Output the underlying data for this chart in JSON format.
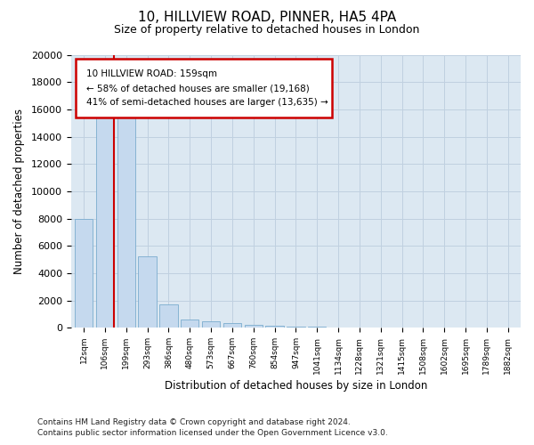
{
  "title_line1": "10, HILLVIEW ROAD, PINNER, HA5 4PA",
  "title_line2": "Size of property relative to detached houses in London",
  "xlabel": "Distribution of detached houses by size in London",
  "ylabel": "Number of detached properties",
  "categories": [
    "12sqm",
    "106sqm",
    "199sqm",
    "293sqm",
    "386sqm",
    "480sqm",
    "573sqm",
    "667sqm",
    "760sqm",
    "854sqm",
    "947sqm",
    "1041sqm",
    "1134sqm",
    "1228sqm",
    "1321sqm",
    "1415sqm",
    "1508sqm",
    "1602sqm",
    "1695sqm",
    "1789sqm",
    "1882sqm"
  ],
  "values": [
    8000,
    16700,
    16700,
    5200,
    1700,
    600,
    450,
    310,
    210,
    160,
    110,
    65,
    42,
    22,
    12,
    7,
    5,
    4,
    3,
    2,
    1
  ],
  "bar_color": "#c5d9ee",
  "bar_edge_color": "#7aacce",
  "vline_color": "#cc0000",
  "vline_x": 1.42,
  "ylim_max": 20000,
  "yticks": [
    0,
    2000,
    4000,
    6000,
    8000,
    10000,
    12000,
    14000,
    16000,
    18000,
    20000
  ],
  "grid_color": "#c0d0e0",
  "bg_color": "#dce8f2",
  "annotation_line1": "10 HILLVIEW ROAD: 159sqm",
  "annotation_line2": "← 58% of detached houses are smaller (19,168)",
  "annotation_line3": "41% of semi-detached houses are larger (13,635) →",
  "footnote1": "Contains HM Land Registry data © Crown copyright and database right 2024.",
  "footnote2": "Contains public sector information licensed under the Open Government Licence v3.0.",
  "fig_width": 6.0,
  "fig_height": 5.0,
  "dpi": 100
}
